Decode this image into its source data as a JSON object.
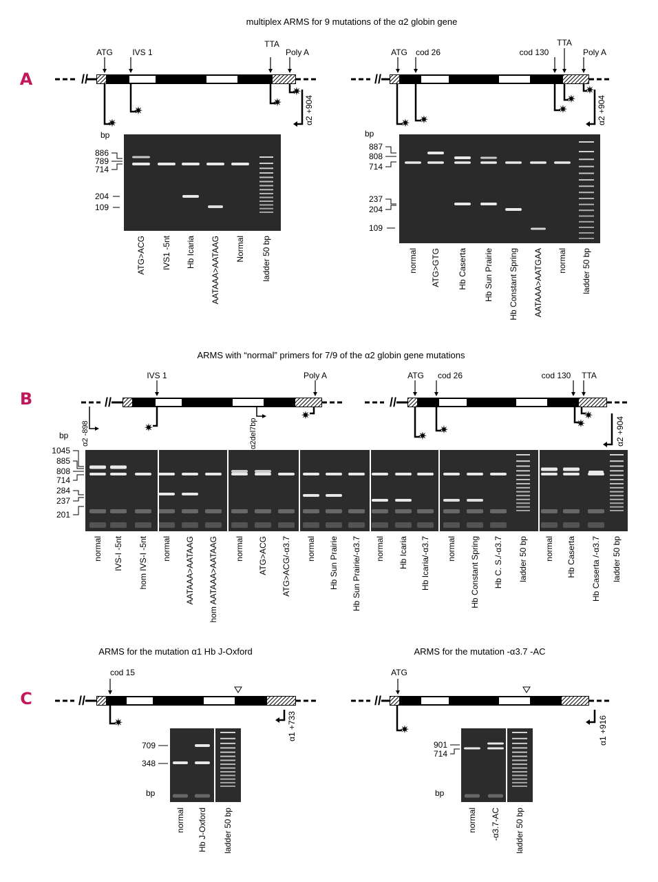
{
  "colors": {
    "panel_letter": "#c2185b",
    "gel": "#2a2a2a",
    "band": "#f2f2f2"
  },
  "panel_A": {
    "letter": "A",
    "title": "multiplex ARMS for 9 mutations of the α2 globin gene",
    "left": {
      "gene_labels": [
        "ATG",
        "IVS 1",
        "TTA",
        "Poly A"
      ],
      "primer_label": "α2 +904",
      "axis_unit": "bp",
      "sizes": [
        "886",
        "789",
        "714",
        "204",
        "109"
      ],
      "lanes": [
        "ATG>ACG",
        "IVS1 -5nt",
        "Hb Icaria",
        "AATAAA>AATAAG",
        "Normal",
        "ladder 50 bp"
      ]
    },
    "right": {
      "gene_labels": [
        "ATG",
        "cod 26",
        "cod 130",
        "TTA",
        "Poly A"
      ],
      "primer_label": "α2 +904",
      "axis_unit": "bp",
      "sizes": [
        "887",
        "808",
        "714",
        "237",
        "204",
        "109"
      ],
      "lanes": [
        "normal",
        "ATG>GTG",
        "Hb Caserta",
        "Hb Sun Prairie",
        "Hb Constant Spring",
        "AATAAA>AATGAA",
        "normal",
        "ladder 50 bp"
      ]
    }
  },
  "panel_B": {
    "letter": "B",
    "title": "ARMS with “normal” primers for 7/9 of the α2 globin gene mutations",
    "left_gene_labels": [
      "IVS 1",
      "Poly A"
    ],
    "right_gene_labels": [
      "ATG",
      "cod 26",
      "cod 130",
      "TTA"
    ],
    "primer_left": "α2 -898",
    "primer_mid": "α2del7bp",
    "primer_right": "α2 +904",
    "axis_unit": "bp",
    "sizes": [
      "1045",
      "885",
      "808",
      "714",
      "284",
      "237",
      "201"
    ],
    "lanes": [
      "normal",
      "IVS-I -5nt",
      "hom  IVS-I -5nt",
      "normal",
      "AATAAA>AATAAG",
      "hom AATAAA>AATAAG",
      "normal",
      "ATG>ACG",
      "ATG>ACG/-α3.7",
      "normal",
      "Hb Sun Prairie",
      "Hb Sun Prairie/-α3.7",
      "normal",
      "Hb Icaria",
      "Hb Icaria/-α3.7",
      "normal",
      "Hb Constant Spring",
      "Hb C. S./-α3.7",
      "ladder 50 bp",
      "normal",
      "Hb Caserta",
      "Hb Caserta /-α3.7",
      "ladder 50 bp"
    ]
  },
  "panel_C": {
    "letter": "C",
    "left": {
      "title": "ARMS for the mutation  α1 Hb J-Oxford",
      "gene_label": "cod 15",
      "primer_label": "α1 +733",
      "sizes": [
        "709",
        "348"
      ],
      "axis_unit": "bp",
      "lanes": [
        "normal",
        "Hb J-Oxford",
        "ladder 50 bp"
      ]
    },
    "right": {
      "title": "ARMS for the mutation  -α3.7 -AC",
      "gene_label": "ATG",
      "primer_label": "α1 +916",
      "sizes": [
        "901",
        "714"
      ],
      "axis_unit": "bp",
      "lanes": [
        "normal",
        "-α3.7-AC",
        "ladder 50 bp"
      ]
    }
  }
}
